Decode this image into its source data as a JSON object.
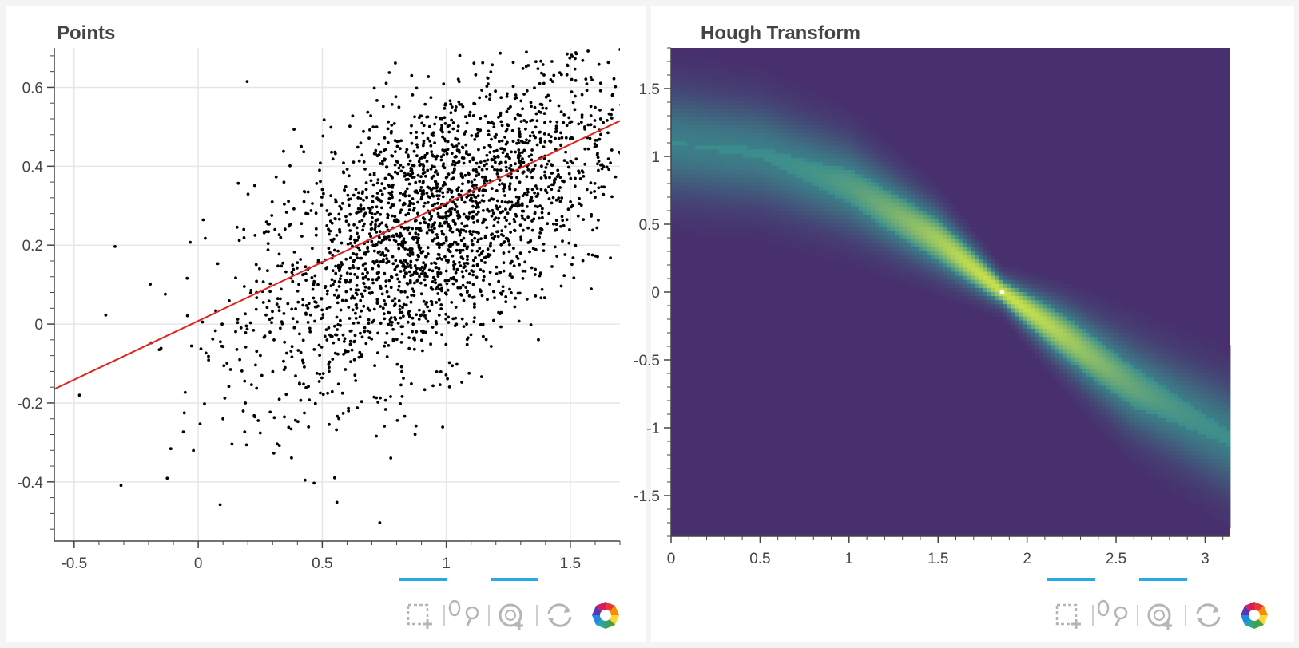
{
  "left_panel": {
    "title": "Points",
    "toolbar": {
      "tools": [
        "box-zoom",
        "wheel-zoom",
        "reset"
      ],
      "active": [
        "box-zoom",
        "wheel-zoom"
      ],
      "logo": "bokeh-logo"
    }
  },
  "right_panel": {
    "title": "Hough Transform",
    "toolbar": {
      "tools": [
        "box-zoom",
        "wheel-zoom",
        "reset"
      ],
      "active": [
        "box-zoom",
        "wheel-zoom"
      ],
      "logo": "bokeh-logo"
    }
  },
  "colors": {
    "points": "#000000",
    "fit_line": "#e0231c",
    "grid": "#e6e6e6",
    "axis": "#444444",
    "tool_active": "#26aae1",
    "tool_icon": "#b5b5b5",
    "heatmap_bg": "#482f6d",
    "heatmap_mid": "#3a8c8d",
    "heatmap_high": "#c9e24b"
  },
  "chart_data": [
    {
      "type": "scatter",
      "title": "Points",
      "xlim": [
        -0.58,
        1.7
      ],
      "ylim": [
        -0.55,
        0.7
      ],
      "xticks": [
        -0.5,
        0,
        0.5,
        1,
        1.5
      ],
      "xtick_labels": [
        "-0.5",
        "0",
        "0.5",
        "1",
        "1.5"
      ],
      "yticks": [
        -0.4,
        -0.2,
        0,
        0.2,
        0.4,
        0.6
      ],
      "ytick_labels": [
        "-0.4",
        "-0.2",
        "0",
        "0.2",
        "0.4",
        "0.6"
      ],
      "grid": true,
      "n_points": 2500,
      "point_distribution": {
        "x_center": 0.95,
        "x_spread": 0.38,
        "y_center": 0.25,
        "y_spread": 0.17,
        "slope": 0.32
      },
      "fit_line": {
        "points": [
          [
            -0.58,
            -0.165
          ],
          [
            1.7,
            0.515
          ]
        ]
      }
    },
    {
      "type": "heatmap",
      "title": "Hough Transform",
      "xlim": [
        0,
        3.1416
      ],
      "ylim": [
        -1.8,
        1.8
      ],
      "xticks": [
        0,
        0.5,
        1,
        1.5,
        2,
        2.5,
        3
      ],
      "xtick_labels": [
        "0",
        "0.5",
        "1",
        "1.5",
        "2",
        "2.5",
        "3"
      ],
      "yticks": [
        -1.5,
        -1,
        -0.5,
        0,
        0.5,
        1,
        1.5
      ],
      "ytick_labels": [
        "-1.5",
        "-1",
        "-0.5",
        "0",
        "0.5",
        "1",
        "1.5"
      ],
      "grid": false,
      "peak": {
        "theta": 1.86,
        "rho": 0.0
      },
      "band": {
        "x": [
          0,
          0.5,
          1.0,
          1.5,
          1.86,
          2.2,
          2.6,
          3.1416
        ],
        "center": [
          1.1,
          1.02,
          0.78,
          0.38,
          0.0,
          -0.32,
          -0.7,
          -1.08
        ],
        "half_width": [
          0.42,
          0.4,
          0.36,
          0.25,
          0.12,
          0.25,
          0.36,
          0.42
        ]
      }
    }
  ]
}
